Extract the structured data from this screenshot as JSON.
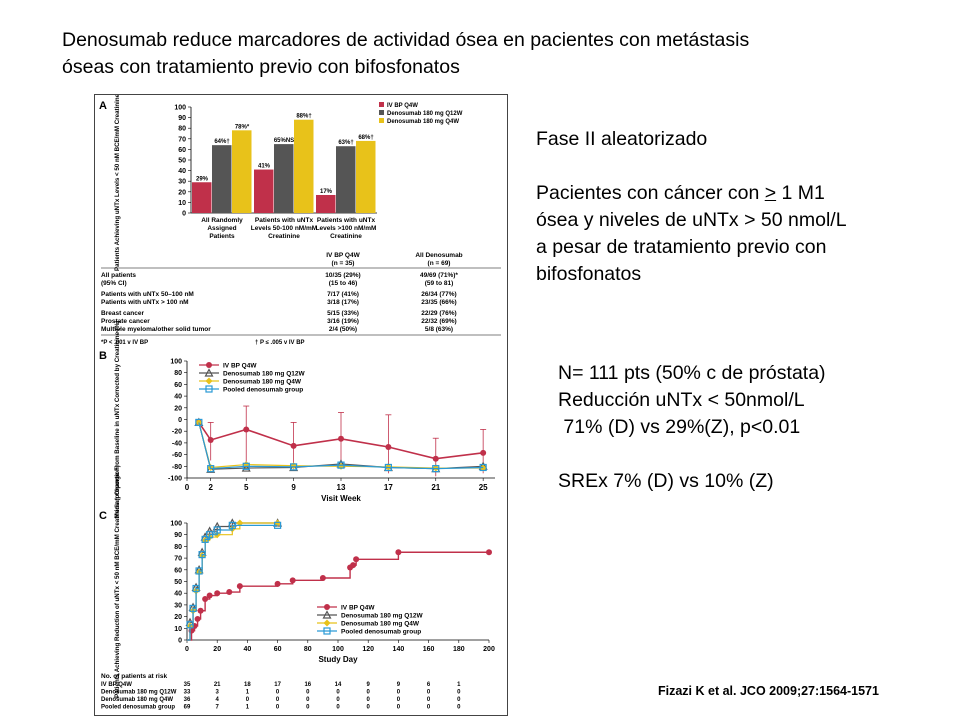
{
  "slide": {
    "title_line1": "Denosumab reduce marcadores de actividad ósea en pacientes con metástasis",
    "title_line2": "óseas con tratamiento previo con bifosfonatos",
    "right_text": {
      "design": "Fase II aleatorizado",
      "inclusion_pre": "Pacientes con cáncer con ",
      "inclusion_sym": ">",
      "inclusion_post": " 1 M1",
      "inclusion_line2": "ósea y niveles de uNTx > 50 nmol/L",
      "inclusion_line3": "a pesar de tratamiento previo con",
      "inclusion_line4": "bifosfonatos",
      "n_line": "N= 111 pts (50% c de próstata)",
      "reduction_line": "Reducción uNTx < 50nmol/L",
      "reduction_values": " 71% (D) vs 29%(Z), p<0.01",
      "sre_line": "SREx 7% (D) vs 10% (Z)"
    },
    "citation": "Fizazi K et al. JCO 2009;27:1564-1571"
  },
  "colors": {
    "ivbp": "#c0304a",
    "q12w": "#555555",
    "q4w": "#e8c21a",
    "pooled": "#2a9ad6"
  },
  "chart_data": [
    {
      "panel": "A",
      "type": "bar",
      "ylabel": "Patients Achieving uNTx Levels < 50 nM BCE/mM Creatinine at Week 13 (%)",
      "ylim": [
        0,
        100
      ],
      "yticks": [
        0,
        10,
        20,
        30,
        40,
        50,
        60,
        70,
        80,
        90,
        100
      ],
      "categories": [
        [
          "All Randomly",
          "Assigned",
          "Patients"
        ],
        [
          "Patients with uNTx",
          "Levels 50-100 nM/mM",
          "Creatinine"
        ],
        [
          "Patients with uNTx",
          "Levels >100 nM/mM",
          "Creatinine"
        ]
      ],
      "legend_position": "top-right",
      "series": [
        {
          "name": "IV BP Q4W",
          "values": [
            29,
            41,
            17
          ],
          "labels": [
            "29%",
            "41%",
            "17%"
          ]
        },
        {
          "name": "Denosumab 180 mg Q12W",
          "values": [
            64,
            65,
            63
          ],
          "labels": [
            "64%†",
            "65%NS",
            "63%†"
          ]
        },
        {
          "name": "Denosumab 180 mg Q4W",
          "values": [
            78,
            88,
            68
          ],
          "labels": [
            "78%*",
            "88%†",
            "68%†"
          ]
        }
      ],
      "table": {
        "headers": [
          [
            "IV BP Q4W",
            "(n = 35)"
          ],
          [
            "All Denosumab",
            "(n = 69)"
          ]
        ],
        "rows": [
          {
            "label": "All patients",
            "ivbp": "10/35 (29%)",
            "deno": "49/69 (71%)*"
          },
          {
            "label": "(95% CI)",
            "ivbp": "(15 to 46)",
            "deno": "(59 to 81)"
          },
          {
            "label": "Patients with uNTx 50–100 nM",
            "ivbp": "7/17 (41%)",
            "deno": "26/34 (77%)"
          },
          {
            "label": "Patients with uNTx > 100 nM",
            "ivbp": "3/18 (17%)",
            "deno": "23/35 (66%)"
          },
          {
            "label": "Breast cancer",
            "ivbp": "5/15 (33%)",
            "deno": "22/29 (76%)"
          },
          {
            "label": "Prostate cancer",
            "ivbp": "3/16 (19%)",
            "deno": "22/32 (69%)"
          },
          {
            "label": "Multiple myeloma/other solid tumor",
            "ivbp": "2/4 (50%)",
            "deno": "5/8 (63%)"
          }
        ],
        "footnote_a": "*P < .001 v IV BP",
        "footnote_b": "† P ≤ .005 v IV BP"
      }
    },
    {
      "panel": "B",
      "type": "line",
      "xlabel": "Visit Week",
      "ylabel": "Median Change From Baseline in uNTx Corrected by Creatinine (%)",
      "xticks": [
        0,
        2,
        5,
        9,
        13,
        17,
        21,
        25
      ],
      "ylim": [
        -100,
        100
      ],
      "yticks": [
        100,
        80,
        60,
        40,
        20,
        0,
        -20,
        -40,
        -60,
        -80,
        -100
      ],
      "legend_position": "top-left",
      "series": [
        {
          "name": "IV BP Q4W",
          "x": [
            1,
            2,
            5,
            9,
            13,
            17,
            21,
            25
          ],
          "y": [
            -5,
            -35,
            -17,
            -45,
            -33,
            -47,
            -67,
            -57
          ],
          "err_hi": [
            0,
            30,
            40,
            40,
            45,
            55,
            35,
            40
          ],
          "err_lo": [
            0,
            35,
            55,
            40,
            50,
            45,
            30,
            35
          ]
        },
        {
          "name": "Denosumab 180 mg Q12W",
          "x": [
            1,
            2,
            5,
            9,
            13,
            17,
            21,
            25
          ],
          "y": [
            -5,
            -85,
            -83,
            -82,
            -76,
            -82,
            -84,
            -80
          ]
        },
        {
          "name": "Denosumab 180 mg Q4W",
          "x": [
            1,
            2,
            5,
            9,
            13,
            17,
            21,
            25
          ],
          "y": [
            -5,
            -82,
            -77,
            -79,
            -80,
            -81,
            -83,
            -83
          ]
        },
        {
          "name": "Pooled denosumab group",
          "x": [
            1,
            2,
            5,
            9,
            13,
            17,
            21,
            25
          ],
          "y": [
            -5,
            -84,
            -80,
            -81,
            -78,
            -82,
            -84,
            -82
          ]
        }
      ]
    },
    {
      "panel": "C",
      "type": "line",
      "xlabel": "Study Day",
      "ylabel": "Patients Achieving Reduction of uNTx < 50 nM BCE/mM Creatinine (proportion)",
      "xticks": [
        0,
        20,
        40,
        60,
        80,
        100,
        120,
        140,
        160,
        180,
        200
      ],
      "ylim": [
        0,
        100
      ],
      "yticks": [
        0,
        10,
        20,
        30,
        40,
        50,
        60,
        70,
        80,
        90,
        100
      ],
      "legend_position": "bottom-right",
      "series": [
        {
          "name": "IV BP Q4W",
          "x": [
            0,
            3,
            5,
            7,
            9,
            12,
            15,
            20,
            28,
            35,
            60,
            70,
            90,
            108,
            110,
            112,
            140,
            200
          ],
          "y": [
            0,
            8,
            12,
            18,
            25,
            35,
            38,
            40,
            41,
            46,
            48,
            51,
            53,
            62,
            64,
            69,
            75,
            75
          ]
        },
        {
          "name": "Denosumab 180 mg Q12W",
          "x": [
            0,
            2,
            4,
            6,
            8,
            10,
            12,
            15,
            20,
            30,
            60
          ],
          "y": [
            0,
            15,
            28,
            45,
            60,
            75,
            88,
            93,
            97,
            100,
            100
          ]
        },
        {
          "name": "Denosumab 180 mg Q4W",
          "x": [
            0,
            2,
            4,
            6,
            8,
            10,
            12,
            15,
            20,
            30,
            35,
            60
          ],
          "y": [
            0,
            12,
            25,
            42,
            58,
            72,
            85,
            88,
            90,
            95,
            100,
            100
          ]
        },
        {
          "name": "Pooled denosumab group",
          "x": [
            0,
            2,
            4,
            6,
            8,
            10,
            12,
            15,
            20,
            30,
            60
          ],
          "y": [
            0,
            13,
            27,
            44,
            59,
            73,
            86,
            90,
            94,
            98,
            98
          ]
        }
      ],
      "at_risk": {
        "title": "No. of patients at risk",
        "days": [
          0,
          20,
          40,
          60,
          80,
          100,
          120,
          140,
          160,
          180,
          200
        ],
        "rows": [
          {
            "label": "IV BP Q4W",
            "counts": [
              35,
              21,
              18,
              17,
              16,
              14,
              9,
              9,
              6,
              1
            ]
          },
          {
            "label": "Denosumab 180 mg Q12W",
            "counts": [
              33,
              3,
              1,
              0,
              0,
              0,
              0,
              0,
              0,
              0
            ]
          },
          {
            "label": "Denosumab 180 mg Q4W",
            "counts": [
              36,
              4,
              0,
              0,
              0,
              0,
              0,
              0,
              0,
              0
            ]
          },
          {
            "label": "Pooled denosumab group",
            "counts": [
              69,
              7,
              1,
              0,
              0,
              0,
              0,
              0,
              0,
              0
            ]
          }
        ]
      }
    }
  ]
}
